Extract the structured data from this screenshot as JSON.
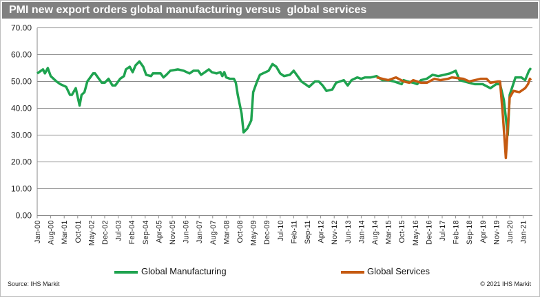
{
  "chart_data": {
    "type": "line",
    "title": "PMI new export orders global manufacturing versus  global services",
    "xlabel": "",
    "ylabel": "",
    "ylim": [
      0,
      70
    ],
    "y_ticks": [
      "0.00",
      "10.00",
      "20.00",
      "30.00",
      "40.00",
      "50.00",
      "60.00",
      "70.00"
    ],
    "x_unit": "months since Jan-00",
    "x_ticks": [
      "Jan-00",
      "Aug-00",
      "Mar-01",
      "Oct-01",
      "May-02",
      "Dec-02",
      "Jul-03",
      "Feb-04",
      "Sep-04",
      "Apr-05",
      "Nov-05",
      "Jun-06",
      "Jan-07",
      "Aug-07",
      "Mar-08",
      "Oct-08",
      "May-09",
      "Dec-09",
      "Jul-10",
      "Feb-11",
      "Sep-11",
      "Apr-12",
      "Nov-12",
      "Jun-13",
      "Jan-14",
      "Aug-14",
      "Mar-15",
      "Oct-15",
      "May-16",
      "Dec-16",
      "Jul-17",
      "Feb-18",
      "Sep-18",
      "Apr-19",
      "Nov-19",
      "Jun-20",
      "Jan-21"
    ],
    "grid": true,
    "legend_position": "bottom",
    "series": [
      {
        "name": "Global Manufacturing",
        "color": "#1ea34f",
        "points": [
          [
            0,
            53
          ],
          [
            3,
            54.5
          ],
          [
            4,
            53
          ],
          [
            5.5,
            55
          ],
          [
            7,
            52
          ],
          [
            10,
            50
          ],
          [
            12,
            49
          ],
          [
            15,
            48
          ],
          [
            17,
            45
          ],
          [
            18,
            45
          ],
          [
            20,
            47.5
          ],
          [
            22,
            41
          ],
          [
            23,
            45
          ],
          [
            24.5,
            46
          ],
          [
            26,
            50
          ],
          [
            29,
            53
          ],
          [
            30,
            53
          ],
          [
            32,
            51
          ],
          [
            33.5,
            49.5
          ],
          [
            35,
            49.5
          ],
          [
            37,
            51
          ],
          [
            39,
            48.5
          ],
          [
            40.5,
            48.5
          ],
          [
            43,
            51
          ],
          [
            45,
            52
          ],
          [
            46,
            54.5
          ],
          [
            48,
            55.5
          ],
          [
            49.5,
            53.5
          ],
          [
            51,
            56
          ],
          [
            53,
            57.5
          ],
          [
            55,
            55.5
          ],
          [
            56.5,
            52.5
          ],
          [
            59,
            52
          ],
          [
            60,
            53
          ],
          [
            64,
            53
          ],
          [
            65.5,
            51.5
          ],
          [
            67,
            52.5
          ],
          [
            69,
            54
          ],
          [
            73,
            54.5
          ],
          [
            76,
            54
          ],
          [
            79,
            53
          ],
          [
            81,
            54
          ],
          [
            83.5,
            54
          ],
          [
            85,
            52.5
          ],
          [
            87,
            53.5
          ],
          [
            89,
            54.5
          ],
          [
            90.5,
            53.5
          ],
          [
            93,
            53
          ],
          [
            95,
            53.5
          ],
          [
            96,
            52
          ],
          [
            97,
            53.5
          ],
          [
            98,
            51.5
          ],
          [
            100,
            51
          ],
          [
            102,
            51
          ],
          [
            103,
            49.5
          ],
          [
            104,
            45
          ],
          [
            106,
            38
          ],
          [
            107,
            31
          ],
          [
            109,
            32.5
          ],
          [
            111,
            35.5
          ],
          [
            112,
            46
          ],
          [
            114,
            50
          ],
          [
            115.5,
            52.5
          ],
          [
            117,
            53
          ],
          [
            120,
            54
          ],
          [
            122,
            56.5
          ],
          [
            124,
            55.5
          ],
          [
            126,
            53
          ],
          [
            128,
            52
          ],
          [
            131,
            52.5
          ],
          [
            133,
            54
          ],
          [
            135,
            52
          ],
          [
            137,
            50
          ],
          [
            141,
            48
          ],
          [
            144,
            50
          ],
          [
            146,
            50
          ],
          [
            148,
            48.5
          ],
          [
            150,
            46.5
          ],
          [
            153,
            47
          ],
          [
            155,
            49.5
          ],
          [
            159,
            50.5
          ],
          [
            161,
            48.5
          ],
          [
            163,
            50.5
          ],
          [
            166,
            51.5
          ],
          [
            168,
            51
          ],
          [
            170,
            51.5
          ],
          [
            173,
            51.5
          ],
          [
            176,
            52
          ],
          [
            179,
            50.5
          ],
          [
            182,
            50.5
          ],
          [
            185,
            50
          ],
          [
            189,
            49
          ],
          [
            190,
            50.5
          ],
          [
            192,
            50
          ],
          [
            195,
            49.5
          ],
          [
            197,
            49
          ],
          [
            199,
            50.5
          ],
          [
            202,
            51
          ],
          [
            205,
            52.5
          ],
          [
            208,
            52
          ],
          [
            211,
            52.5
          ],
          [
            214,
            53
          ],
          [
            217,
            54
          ],
          [
            219,
            50.5
          ],
          [
            224,
            49.5
          ],
          [
            227,
            49
          ],
          [
            231,
            49
          ],
          [
            235,
            47.5
          ],
          [
            238,
            49
          ],
          [
            240,
            49
          ],
          [
            242,
            43
          ],
          [
            244,
            30
          ],
          [
            245,
            45
          ],
          [
            248,
            51.5
          ],
          [
            251,
            51.5
          ],
          [
            253,
            50.5
          ],
          [
            255,
            54
          ],
          [
            256,
            55
          ]
        ]
      },
      {
        "name": "Global Services",
        "color": "#c55a11",
        "points": [
          [
            176,
            51.5
          ],
          [
            179,
            51
          ],
          [
            182,
            50.5
          ],
          [
            186,
            51.5
          ],
          [
            190,
            50
          ],
          [
            193,
            49.5
          ],
          [
            195,
            50.5
          ],
          [
            199,
            49.5
          ],
          [
            202,
            49.5
          ],
          [
            206,
            51
          ],
          [
            209,
            50.5
          ],
          [
            213,
            51
          ],
          [
            215,
            51.5
          ],
          [
            221,
            51
          ],
          [
            224,
            50
          ],
          [
            227,
            50.5
          ],
          [
            230,
            51
          ],
          [
            233,
            51
          ],
          [
            235,
            49.5
          ],
          [
            239,
            50
          ],
          [
            240,
            50
          ],
          [
            241.5,
            37
          ],
          [
            243,
            21.5
          ],
          [
            245,
            44
          ],
          [
            247,
            46.5
          ],
          [
            250,
            46
          ],
          [
            253,
            47.5
          ],
          [
            254.5,
            49
          ],
          [
            255.5,
            51
          ],
          [
            256,
            50.5
          ]
        ]
      }
    ]
  },
  "footer": {
    "source": "Source: IHS Markit",
    "copyright": "© 2021 IHS Markit"
  }
}
